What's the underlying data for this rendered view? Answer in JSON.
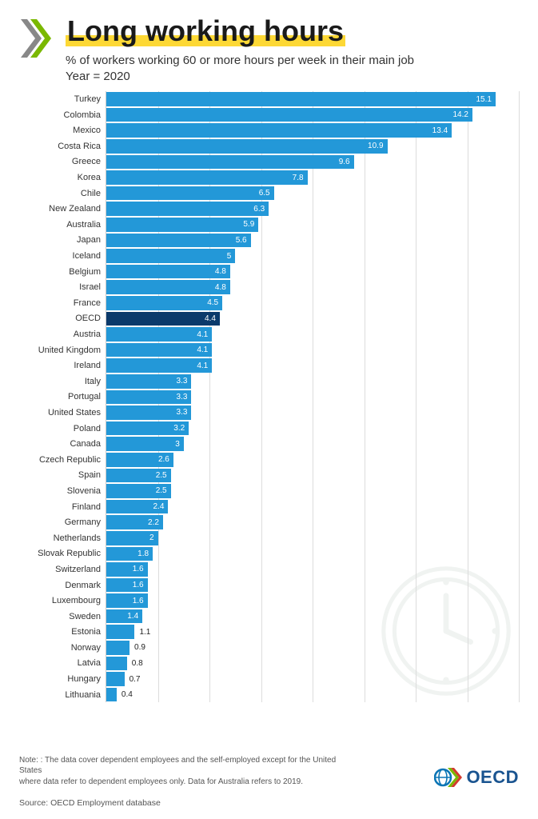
{
  "header": {
    "title": "Long working hours",
    "subtitle": "% of workers working 60 or more hours per week in their main job",
    "year_label": "Year = 2020"
  },
  "chart": {
    "type": "bar",
    "xlim": [
      0,
      16
    ],
    "xtick_step": 2,
    "bar_color": "#2398d8",
    "highlight_color": "#0b3a6b",
    "highlight_key": "OECD",
    "grid_color": "#dcdcdc",
    "background_color": "#ffffff",
    "label_inside_threshold": 1.4,
    "label_fontsize": 10,
    "axis_label_fontsize": 11,
    "rows": [
      {
        "label": "Turkey",
        "value": 15.1
      },
      {
        "label": "Colombia",
        "value": 14.2
      },
      {
        "label": "Mexico",
        "value": 13.4
      },
      {
        "label": "Costa Rica",
        "value": 10.9
      },
      {
        "label": "Greece",
        "value": 9.6
      },
      {
        "label": "Korea",
        "value": 7.8
      },
      {
        "label": "Chile",
        "value": 6.5
      },
      {
        "label": "New Zealand",
        "value": 6.3
      },
      {
        "label": "Australia",
        "value": 5.9
      },
      {
        "label": "Japan",
        "value": 5.6
      },
      {
        "label": "Iceland",
        "value": 5
      },
      {
        "label": "Belgium",
        "value": 4.8
      },
      {
        "label": "Israel",
        "value": 4.8
      },
      {
        "label": "France",
        "value": 4.5
      },
      {
        "label": "OECD",
        "value": 4.4
      },
      {
        "label": "Austria",
        "value": 4.1
      },
      {
        "label": "United Kingdom",
        "value": 4.1
      },
      {
        "label": "Ireland",
        "value": 4.1
      },
      {
        "label": "Italy",
        "value": 3.3
      },
      {
        "label": "Portugal",
        "value": 3.3
      },
      {
        "label": "United States",
        "value": 3.3
      },
      {
        "label": "Poland",
        "value": 3.2
      },
      {
        "label": "Canada",
        "value": 3
      },
      {
        "label": "Czech Republic",
        "value": 2.6
      },
      {
        "label": "Spain",
        "value": 2.5
      },
      {
        "label": "Slovenia",
        "value": 2.5
      },
      {
        "label": "Finland",
        "value": 2.4
      },
      {
        "label": "Germany",
        "value": 2.2
      },
      {
        "label": "Netherlands",
        "value": 2
      },
      {
        "label": "Slovak Republic",
        "value": 1.8
      },
      {
        "label": "Switzerland",
        "value": 1.6
      },
      {
        "label": "Denmark",
        "value": 1.6
      },
      {
        "label": "Luxembourg",
        "value": 1.6
      },
      {
        "label": "Sweden",
        "value": 1.4
      },
      {
        "label": "Estonia",
        "value": 1.1
      },
      {
        "label": "Norway",
        "value": 0.9
      },
      {
        "label": "Latvia",
        "value": 0.8
      },
      {
        "label": "Hungary",
        "value": 0.7
      },
      {
        "label": "Lithuania",
        "value": 0.4
      }
    ]
  },
  "footer": {
    "note_line1": "Note: : The data cover dependent employees and the self-employed except for the United States",
    "note_line2": "where data refer to dependent employees only. Data for Australia refers to 2019.",
    "source": "Source: OECD Employment database",
    "brand": "OECD"
  },
  "colors": {
    "title_highlight": "#fdd835",
    "logo_green": "#7ab800",
    "logo_grey": "#888888",
    "logo_blue": "#0b75b5",
    "logo_red": "#d33a2f",
    "logo_footer_green": "#7ab800",
    "clock_stroke": "#8fa89a"
  }
}
